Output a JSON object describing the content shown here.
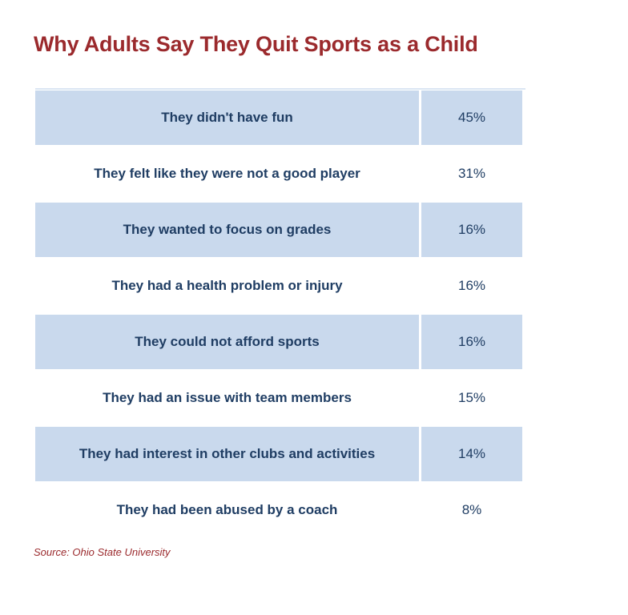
{
  "chart_data": {
    "type": "table",
    "title": "Why Adults Say They Quit Sports as a Child",
    "rows": [
      {
        "reason": "They didn't have fun",
        "value": "45%"
      },
      {
        "reason": "They felt like they were not a good player",
        "value": "31%"
      },
      {
        "reason": "They wanted to focus on grades",
        "value": "16%"
      },
      {
        "reason": "They had a health problem or injury",
        "value": "16%"
      },
      {
        "reason": "They could not afford sports",
        "value": "16%"
      },
      {
        "reason": "They had an issue with team members",
        "value": "15%"
      },
      {
        "reason": "They had interest in other clubs and activities",
        "value": "14%"
      },
      {
        "reason": "They had been abused by a coach",
        "value": "8%"
      }
    ],
    "source": "Source: Ohio State University"
  },
  "colors": {
    "title": "#9b2a2d",
    "text": "#1f3d63",
    "row_shade": "#c9d9ed"
  }
}
